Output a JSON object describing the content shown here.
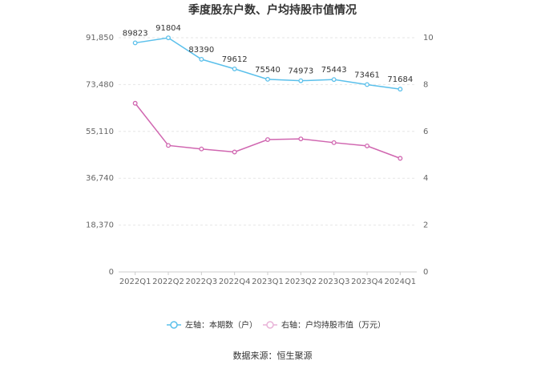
{
  "chart_data": {
    "type": "line",
    "title": "季度股东户数、户均持股市值情况",
    "categories": [
      "2022Q1",
      "2022Q2",
      "2022Q3",
      "2022Q4",
      "2023Q1",
      "2023Q2",
      "2023Q3",
      "2023Q4",
      "2024Q1"
    ],
    "left_axis": {
      "ylim": [
        0,
        91850
      ],
      "ticks": [
        "0",
        "18,370",
        "36,740",
        "55,110",
        "73,480",
        "91,850"
      ],
      "tick_values": [
        0,
        18370,
        36740,
        55110,
        73480,
        91850
      ]
    },
    "right_axis": {
      "ylim": [
        0,
        10
      ],
      "ticks": [
        "0",
        "2",
        "4",
        "6",
        "8",
        "10"
      ],
      "tick_values": [
        0,
        2,
        4,
        6,
        8,
        10
      ]
    },
    "series": [
      {
        "name": "左轴：本期数（户）",
        "axis": "left",
        "color": "#5bc0eb",
        "values": [
          89823,
          91804,
          83390,
          79612,
          75540,
          74973,
          75443,
          73461,
          71684
        ],
        "labels": [
          "89823",
          "91804",
          "83390",
          "79612",
          "75540",
          "74973",
          "75443",
          "73461",
          "71684"
        ]
      },
      {
        "name": "右轴：户均持股市值（万元）",
        "axis": "right",
        "color": "#d066b0",
        "values": [
          7.2,
          5.4,
          5.25,
          5.12,
          5.65,
          5.68,
          5.52,
          5.38,
          4.85
        ]
      }
    ],
    "grid": true,
    "legend": "bottom"
  },
  "footer": {
    "source": "数据来源：恒生聚源"
  }
}
